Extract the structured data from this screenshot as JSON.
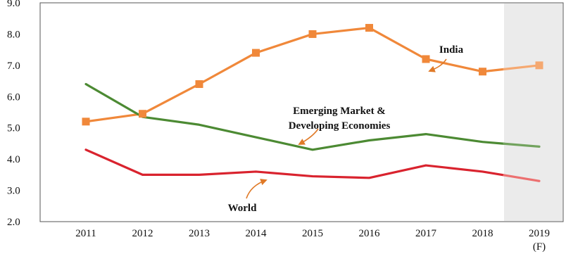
{
  "chart_data": {
    "type": "line",
    "title": "",
    "xlabel": "",
    "ylabel": "",
    "categories": [
      "2011",
      "2012",
      "2013",
      "2014",
      "2015",
      "2016",
      "2017",
      "2018",
      "2019"
    ],
    "x_tick_sublabels": [
      "",
      "",
      "",
      "",
      "",
      "",
      "",
      "",
      "(F)"
    ],
    "ylim": [
      2.0,
      9.0
    ],
    "yticks": [
      "2.0",
      "3.0",
      "4.0",
      "5.0",
      "6.0",
      "7.0",
      "8.0",
      "9.0"
    ],
    "forecast_band": "2019 (F)",
    "grid": false,
    "legend": "none",
    "series": [
      {
        "name": "India",
        "values": [
          5.2,
          5.45,
          6.4,
          7.4,
          8.0,
          8.2,
          7.2,
          6.8,
          7.0
        ],
        "color": "#f0883a",
        "forecast_color": "#f5a870",
        "marker": "square"
      },
      {
        "name": "Emerging Market & Developing Economies",
        "values": [
          6.4,
          5.35,
          5.1,
          4.7,
          4.3,
          4.6,
          4.8,
          4.55,
          4.4
        ],
        "color": "#4c8a33",
        "forecast_color": "#72a35e",
        "marker": "none"
      },
      {
        "name": "World",
        "values": [
          4.3,
          3.5,
          3.5,
          3.6,
          3.45,
          3.4,
          3.8,
          3.6,
          3.3
        ],
        "color": "#d9232e",
        "forecast_color": "#ec7070",
        "marker": "none"
      }
    ],
    "annotations": [
      {
        "lines": [
          "India"
        ],
        "series": "India"
      },
      {
        "lines": [
          "Emerging Market &",
          "Developing Economies"
        ],
        "series": "Emerging Market & Developing Economies"
      },
      {
        "lines": [
          "World"
        ],
        "series": "World"
      }
    ],
    "colors": {
      "frame": "#555555",
      "shade": "#ebebeb",
      "arrow": "#e07a28"
    }
  }
}
